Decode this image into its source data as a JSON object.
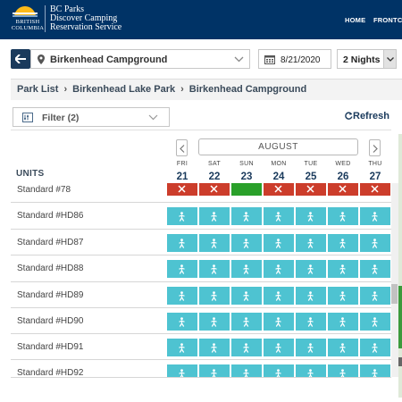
{
  "header": {
    "logo_text": [
      "BRITISH",
      "COLUMBIA"
    ],
    "brand_line1": "BC Parks",
    "brand_line2": "Discover Camping",
    "brand_line3": "Reservation Service",
    "nav": [
      {
        "label": "HOME"
      },
      {
        "label": "FRONTC"
      }
    ]
  },
  "search": {
    "park": "Birkenhead Campground",
    "date": "8/21/2020",
    "nights": "2 Nights"
  },
  "breadcrumb": [
    "Park List",
    "Birkenhead Lake Park",
    "Birkenhead Campground"
  ],
  "filter": {
    "label": "Filter (2)",
    "refresh_label": "Refresh"
  },
  "calendar": {
    "month": "AUGUST",
    "days": [
      {
        "dow": "FRI",
        "num": "21"
      },
      {
        "dow": "SAT",
        "num": "22"
      },
      {
        "dow": "SUN",
        "num": "23"
      },
      {
        "dow": "MON",
        "num": "24"
      },
      {
        "dow": "TUE",
        "num": "25"
      },
      {
        "dow": "WED",
        "num": "26"
      },
      {
        "dow": "THU",
        "num": "27"
      }
    ]
  },
  "units_header": "UNITS",
  "legend_colors": {
    "available": "#4ec3d1",
    "unavailable": "#cc3d2b",
    "selected": "#2aa02a"
  },
  "units": [
    {
      "name": "Standard #78",
      "cells": [
        "unavailable",
        "unavailable",
        "selected",
        "unavailable",
        "unavailable",
        "unavailable",
        "unavailable"
      ]
    },
    {
      "name": "Standard #HD86",
      "cells": [
        "available",
        "available",
        "available",
        "available",
        "available",
        "available",
        "available"
      ]
    },
    {
      "name": "Standard #HD87",
      "cells": [
        "available",
        "available",
        "available",
        "available",
        "available",
        "available",
        "available"
      ]
    },
    {
      "name": "Standard #HD88",
      "cells": [
        "available",
        "available",
        "available",
        "available",
        "available",
        "available",
        "available"
      ]
    },
    {
      "name": "Standard #HD89",
      "cells": [
        "available",
        "available",
        "available",
        "available",
        "available",
        "available",
        "available"
      ]
    },
    {
      "name": "Standard #HD90",
      "cells": [
        "available",
        "available",
        "available",
        "available",
        "available",
        "available",
        "available"
      ]
    },
    {
      "name": "Standard #HD91",
      "cells": [
        "available",
        "available",
        "available",
        "available",
        "available",
        "available",
        "available"
      ]
    },
    {
      "name": "Standard #HD92",
      "cells": [
        "available",
        "available",
        "available",
        "available",
        "available",
        "available",
        "available"
      ]
    }
  ]
}
